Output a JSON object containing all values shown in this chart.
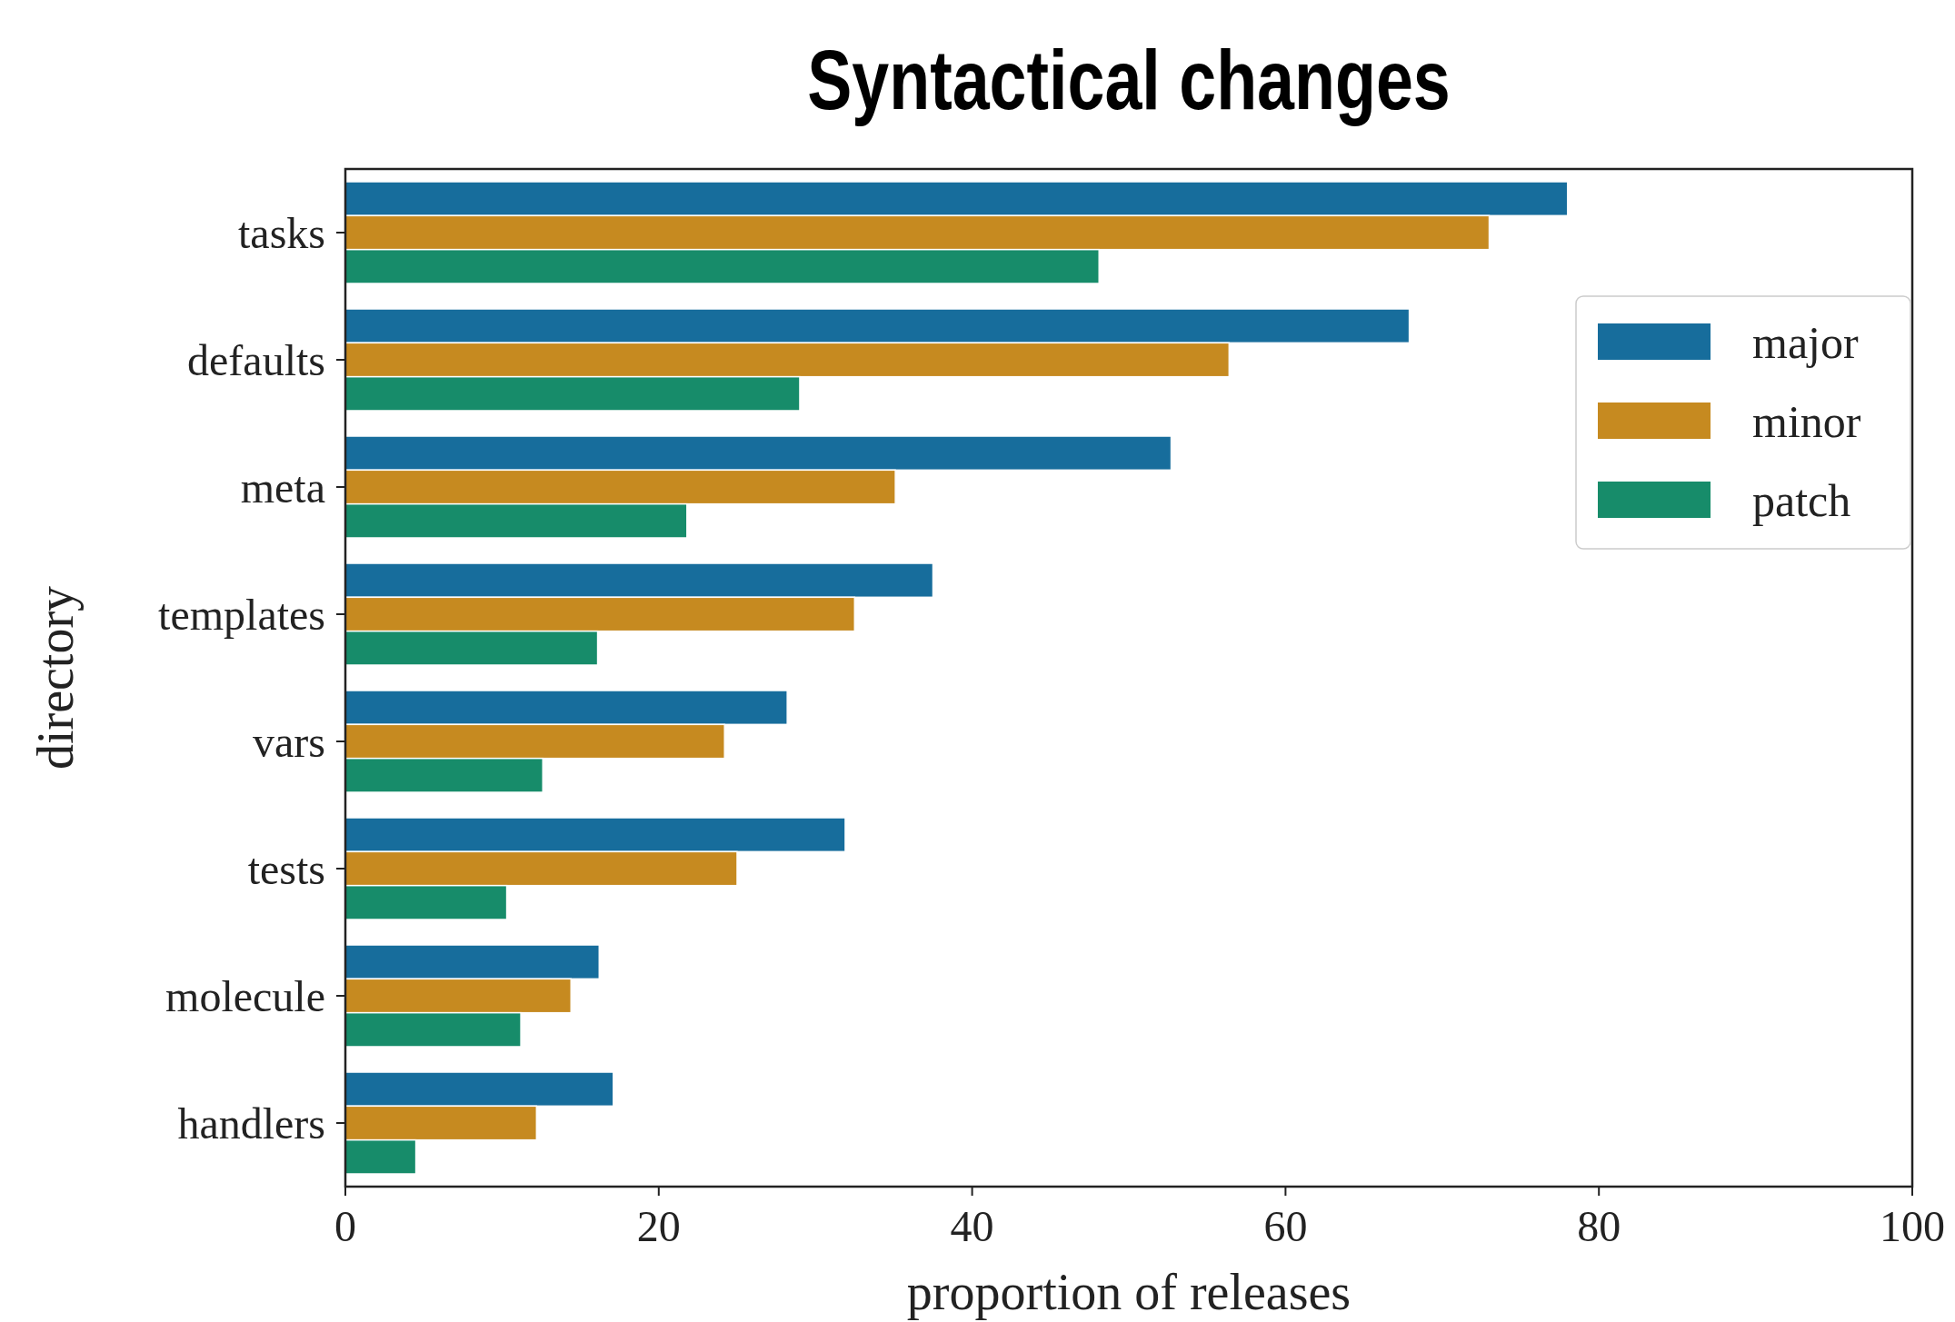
{
  "chart_data": {
    "type": "bar",
    "orientation": "horizontal",
    "title": "Syntactical changes",
    "xlabel": "proportion of releases",
    "ylabel": "directory",
    "categories": [
      "tasks",
      "defaults",
      "meta",
      "templates",
      "vars",
      "tests",
      "molecule",
      "handlers"
    ],
    "series": [
      {
        "name": "major",
        "color": "#176d9c",
        "values": [
          78.0,
          67.9,
          52.7,
          37.5,
          28.2,
          31.9,
          16.2,
          17.1
        ]
      },
      {
        "name": "minor",
        "color": "#c68a20",
        "values": [
          73.0,
          56.4,
          35.1,
          32.5,
          24.2,
          25.0,
          14.4,
          12.2
        ]
      },
      {
        "name": "patch",
        "color": "#178c6a",
        "values": [
          48.1,
          29.0,
          21.8,
          16.1,
          12.6,
          10.3,
          11.2,
          4.5
        ]
      }
    ],
    "xlim": [
      0,
      100
    ],
    "xticks": [
      0,
      20,
      40,
      60,
      80,
      100
    ],
    "legend": "top right",
    "grid": false
  }
}
